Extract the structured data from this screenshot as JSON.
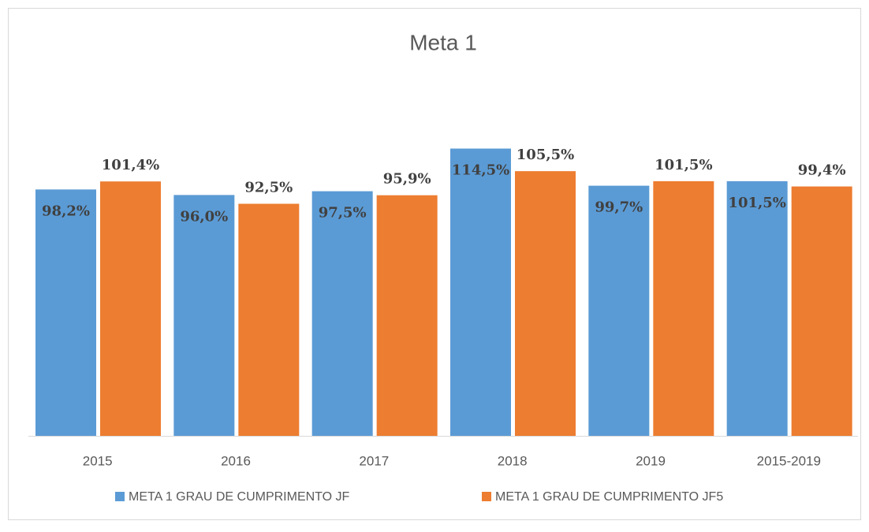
{
  "chart_data": {
    "type": "bar",
    "title": "Meta 1",
    "categories": [
      "2015",
      "2016",
      "2017",
      "2018",
      "2019",
      "2015-2019"
    ],
    "series": [
      {
        "name": "META 1 GRAU DE CUMPRIMENTO JF",
        "color": "#5b9bd5",
        "values": [
          98.2,
          96.0,
          97.5,
          114.5,
          99.7,
          101.5
        ],
        "value_labels": [
          "98,2%",
          "96,0%",
          "97,5%",
          "114,5%",
          "99,7%",
          "101,5%"
        ]
      },
      {
        "name": "META 1 GRAU DE CUMPRIMENTO JF5",
        "color": "#ed7d31",
        "values": [
          101.4,
          92.5,
          95.9,
          105.5,
          101.5,
          99.4
        ],
        "value_labels": [
          "101,4%",
          "92,5%",
          "95,9%",
          "105,5%",
          "101,5%",
          "99,4%"
        ]
      }
    ],
    "ylim": [
      0,
      120
    ]
  }
}
